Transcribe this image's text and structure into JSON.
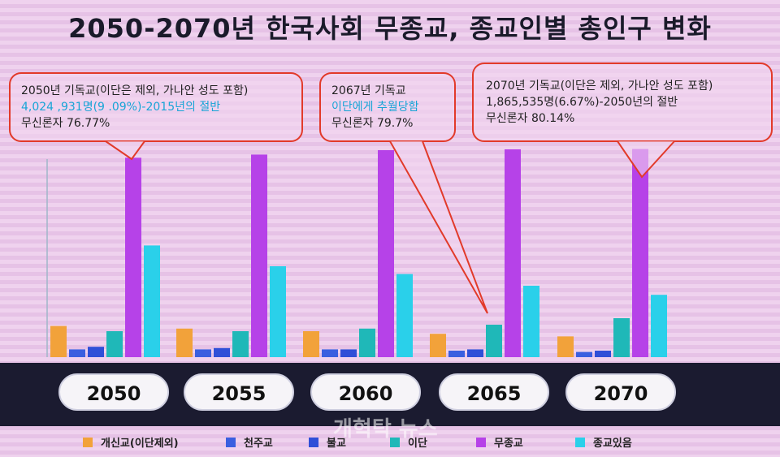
{
  "chart_data": {
    "type": "bar",
    "title": "2050-2070년 한국사회 무종교, 종교인별 총인구 변화",
    "categories": [
      "2050",
      "2055",
      "2060",
      "2065",
      "2070"
    ],
    "ylim": [
      0,
      100
    ],
    "grid": false,
    "legend_position": "bottom",
    "series": [
      {
        "name": "개신교(이단제외)",
        "color": "#f2a23a",
        "values": [
          12,
          11,
          10,
          9,
          8
        ]
      },
      {
        "name": "천주교",
        "color": "#3a5fe0",
        "values": [
          3,
          3,
          3,
          2.5,
          2
        ]
      },
      {
        "name": "불교",
        "color": "#2f4fd8",
        "values": [
          4,
          3.5,
          3,
          3,
          2.5
        ]
      },
      {
        "name": "이단",
        "color": "#1fb8b8",
        "values": [
          10,
          10,
          11,
          12.5,
          15
        ]
      },
      {
        "name": "무종교",
        "color": "#b642e8",
        "values": [
          76.77,
          78,
          79.7,
          80,
          80.14
        ]
      },
      {
        "name": "종교있음",
        "color": "#2ad0ea",
        "values": [
          43,
          35,
          32,
          27.5,
          24
        ]
      }
    ],
    "annotations": [
      {
        "year": "2050",
        "lines": [
          "2050년 기독교(이단은 제외, 가나안 성도 포함)",
          "4,024 ,931명(9 .09%)-2015년의 절반",
          "무신론자 76.77%"
        ],
        "highlight_line": 1
      },
      {
        "year": "2065",
        "lines": [
          "2067년 기독교",
          "이단에게 추월당함",
          "무신론자 79.7%"
        ],
        "highlight_line": 1
      },
      {
        "year": "2070",
        "lines": [
          "2070년 기독교(이단은 제외, 가나안 성도 포함)",
          "1,865,535명(6.67%)-2050년의 절반",
          "무신론자 80.14%"
        ],
        "highlight_line": -1
      }
    ]
  },
  "watermark": "개혁탁 뉴스"
}
